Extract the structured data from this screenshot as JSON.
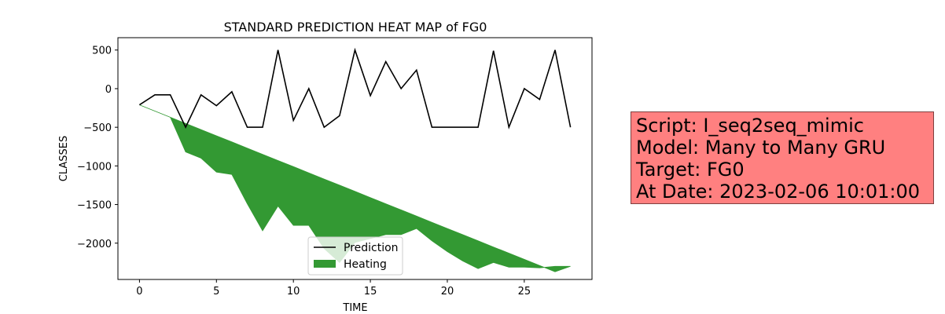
{
  "chart_data": {
    "type": "line",
    "title": "STANDARD PREDICTION HEAT MAP of FG0",
    "xlabel": "TIME",
    "ylabel": "CLASSES",
    "xlim": [
      -1.4,
      29.4
    ],
    "ylim": [
      -2470,
      660
    ],
    "xticks": [
      0,
      5,
      10,
      15,
      20,
      25
    ],
    "yticks": [
      500,
      0,
      -500,
      -1000,
      -1500,
      -2000
    ],
    "ytick_labels": [
      "500",
      "0",
      "−500",
      "−1000",
      "−1500",
      "−2000"
    ],
    "grid": false,
    "legend_position": "lower-center",
    "series": [
      {
        "name": "Prediction",
        "kind": "line",
        "color": "#000000",
        "x": [
          0,
          1,
          2,
          3,
          4,
          5,
          6,
          7,
          8,
          9,
          10,
          11,
          12,
          13,
          14,
          15,
          16,
          17,
          18,
          19,
          20,
          21,
          22,
          23,
          24,
          25,
          26,
          27,
          28
        ],
        "y": [
          -210,
          -80,
          -80,
          -500,
          -80,
          -220,
          -40,
          -500,
          -500,
          500,
          -410,
          0,
          -500,
          -350,
          500,
          -90,
          350,
          0,
          240,
          -500,
          -500,
          -500,
          -500,
          490,
          -500,
          0,
          -140,
          500,
          -500
        ]
      },
      {
        "name": "Heating",
        "kind": "area",
        "color": "#339933",
        "x": [
          0,
          1,
          2,
          3,
          4,
          5,
          6,
          7,
          8,
          9,
          10,
          11,
          12,
          13,
          14,
          15,
          16,
          17,
          18,
          19,
          20,
          21,
          22,
          23,
          24,
          25,
          26,
          27,
          28
        ],
        "y_upper": [
          -210,
          -290,
          -370,
          -450,
          -530,
          -610,
          -690,
          -770,
          -850,
          -930,
          -1010,
          -1090,
          -1170,
          -1250,
          -1330,
          -1410,
          -1490,
          -1570,
          -1650,
          -1730,
          -1810,
          -1890,
          -1970,
          -2050,
          -2130,
          -2210,
          -2290,
          -2370,
          -2300
        ],
        "y_lower": [
          -210,
          -290,
          -370,
          -820,
          -900,
          -1080,
          -1110,
          -1490,
          -1840,
          -1520,
          -1770,
          -1770,
          -2070,
          -2250,
          -1990,
          -1940,
          -1890,
          -1890,
          -1810,
          -1970,
          -2110,
          -2230,
          -2330,
          -2250,
          -2310,
          -2310,
          -2320,
          -2300,
          -2300
        ]
      }
    ]
  },
  "info_box": {
    "lines": [
      "Script: I_seq2seq_mimic",
      "Model: Many to Many GRU",
      "Target: FG0",
      "At Date: 2023-02-06 10:01:00"
    ],
    "background": "#ff8080"
  }
}
